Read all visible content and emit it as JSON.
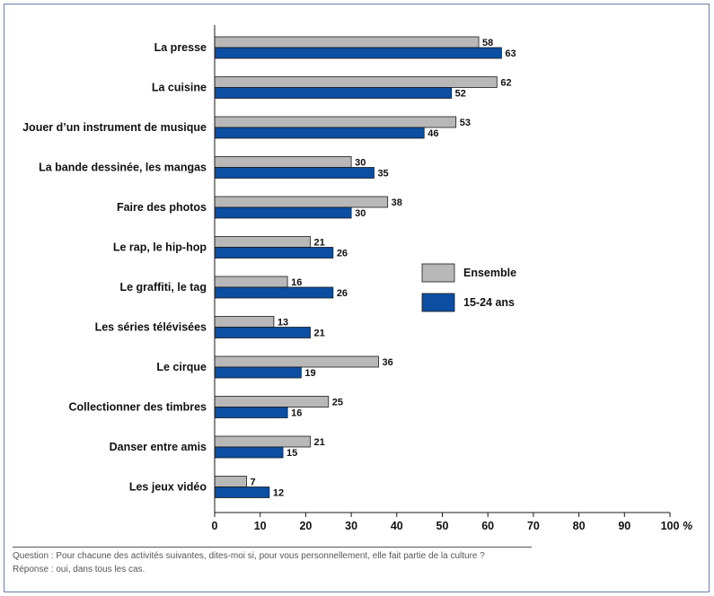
{
  "chart_data": {
    "type": "bar",
    "orientation": "horizontal",
    "categories": [
      "La presse",
      "La cuisine",
      "Jouer d’un instrument de musique",
      "La bande dessinée, les mangas",
      "Faire des photos",
      "Le rap, le hip-hop",
      "Le graffiti, le tag",
      "Les séries télévisées",
      "Le cirque",
      "Collectionner des timbres",
      "Danser entre amis",
      "Les jeux vidéo"
    ],
    "series": [
      {
        "name": "Ensemble",
        "color": "#b8b8b8",
        "values": [
          58,
          62,
          53,
          30,
          38,
          21,
          16,
          13,
          36,
          25,
          21,
          7
        ]
      },
      {
        "name": "15-24 ans",
        "color": "#0b4ea2",
        "values": [
          63,
          52,
          46,
          35,
          30,
          26,
          26,
          21,
          19,
          16,
          15,
          12
        ]
      }
    ],
    "xlim": [
      0,
      100
    ],
    "xticks": [
      "0",
      "10",
      "20",
      "30",
      "40",
      "50",
      "60",
      "70",
      "80",
      "90",
      "100"
    ],
    "xunit": "%",
    "legend_position": "right"
  },
  "notes": {
    "question": "Question : Pour chacune des activités suivantes, dites-moi si, pour vous personnellement, elle fait partie de la culture ?",
    "response": "Réponse : oui, dans tous les cas."
  }
}
